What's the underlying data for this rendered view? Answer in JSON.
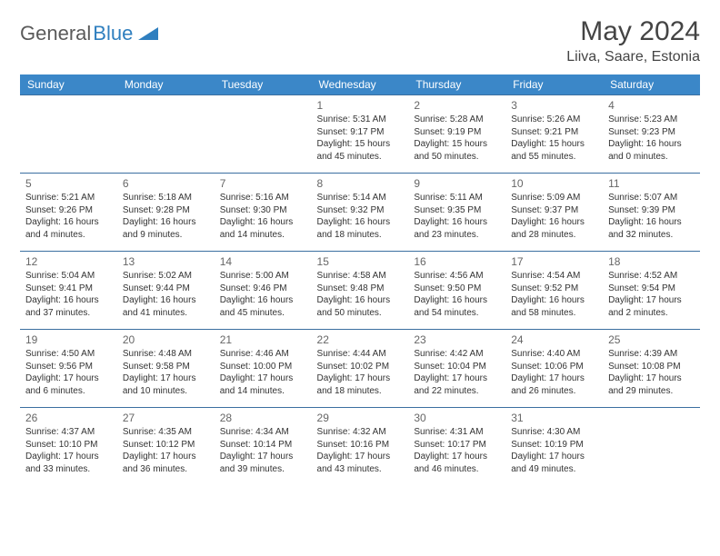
{
  "logo": {
    "text_a": "General",
    "text_b": "Blue"
  },
  "title": "May 2024",
  "location": "Liiva, Saare, Estonia",
  "colors": {
    "header_bg": "#3b87c8",
    "header_text": "#ffffff",
    "row_border": "#3b6fa0",
    "logo_gray": "#5a5a5a",
    "logo_blue": "#2f7fbf",
    "title_color": "#444444"
  },
  "day_headers": [
    "Sunday",
    "Monday",
    "Tuesday",
    "Wednesday",
    "Thursday",
    "Friday",
    "Saturday"
  ],
  "weeks": [
    [
      null,
      null,
      null,
      {
        "n": "1",
        "sunrise": "5:31 AM",
        "sunset": "9:17 PM",
        "daylight": "15 hours and 45 minutes."
      },
      {
        "n": "2",
        "sunrise": "5:28 AM",
        "sunset": "9:19 PM",
        "daylight": "15 hours and 50 minutes."
      },
      {
        "n": "3",
        "sunrise": "5:26 AM",
        "sunset": "9:21 PM",
        "daylight": "15 hours and 55 minutes."
      },
      {
        "n": "4",
        "sunrise": "5:23 AM",
        "sunset": "9:23 PM",
        "daylight": "16 hours and 0 minutes."
      }
    ],
    [
      {
        "n": "5",
        "sunrise": "5:21 AM",
        "sunset": "9:26 PM",
        "daylight": "16 hours and 4 minutes."
      },
      {
        "n": "6",
        "sunrise": "5:18 AM",
        "sunset": "9:28 PM",
        "daylight": "16 hours and 9 minutes."
      },
      {
        "n": "7",
        "sunrise": "5:16 AM",
        "sunset": "9:30 PM",
        "daylight": "16 hours and 14 minutes."
      },
      {
        "n": "8",
        "sunrise": "5:14 AM",
        "sunset": "9:32 PM",
        "daylight": "16 hours and 18 minutes."
      },
      {
        "n": "9",
        "sunrise": "5:11 AM",
        "sunset": "9:35 PM",
        "daylight": "16 hours and 23 minutes."
      },
      {
        "n": "10",
        "sunrise": "5:09 AM",
        "sunset": "9:37 PM",
        "daylight": "16 hours and 28 minutes."
      },
      {
        "n": "11",
        "sunrise": "5:07 AM",
        "sunset": "9:39 PM",
        "daylight": "16 hours and 32 minutes."
      }
    ],
    [
      {
        "n": "12",
        "sunrise": "5:04 AM",
        "sunset": "9:41 PM",
        "daylight": "16 hours and 37 minutes."
      },
      {
        "n": "13",
        "sunrise": "5:02 AM",
        "sunset": "9:44 PM",
        "daylight": "16 hours and 41 minutes."
      },
      {
        "n": "14",
        "sunrise": "5:00 AM",
        "sunset": "9:46 PM",
        "daylight": "16 hours and 45 minutes."
      },
      {
        "n": "15",
        "sunrise": "4:58 AM",
        "sunset": "9:48 PM",
        "daylight": "16 hours and 50 minutes."
      },
      {
        "n": "16",
        "sunrise": "4:56 AM",
        "sunset": "9:50 PM",
        "daylight": "16 hours and 54 minutes."
      },
      {
        "n": "17",
        "sunrise": "4:54 AM",
        "sunset": "9:52 PM",
        "daylight": "16 hours and 58 minutes."
      },
      {
        "n": "18",
        "sunrise": "4:52 AM",
        "sunset": "9:54 PM",
        "daylight": "17 hours and 2 minutes."
      }
    ],
    [
      {
        "n": "19",
        "sunrise": "4:50 AM",
        "sunset": "9:56 PM",
        "daylight": "17 hours and 6 minutes."
      },
      {
        "n": "20",
        "sunrise": "4:48 AM",
        "sunset": "9:58 PM",
        "daylight": "17 hours and 10 minutes."
      },
      {
        "n": "21",
        "sunrise": "4:46 AM",
        "sunset": "10:00 PM",
        "daylight": "17 hours and 14 minutes."
      },
      {
        "n": "22",
        "sunrise": "4:44 AM",
        "sunset": "10:02 PM",
        "daylight": "17 hours and 18 minutes."
      },
      {
        "n": "23",
        "sunrise": "4:42 AM",
        "sunset": "10:04 PM",
        "daylight": "17 hours and 22 minutes."
      },
      {
        "n": "24",
        "sunrise": "4:40 AM",
        "sunset": "10:06 PM",
        "daylight": "17 hours and 26 minutes."
      },
      {
        "n": "25",
        "sunrise": "4:39 AM",
        "sunset": "10:08 PM",
        "daylight": "17 hours and 29 minutes."
      }
    ],
    [
      {
        "n": "26",
        "sunrise": "4:37 AM",
        "sunset": "10:10 PM",
        "daylight": "17 hours and 33 minutes."
      },
      {
        "n": "27",
        "sunrise": "4:35 AM",
        "sunset": "10:12 PM",
        "daylight": "17 hours and 36 minutes."
      },
      {
        "n": "28",
        "sunrise": "4:34 AM",
        "sunset": "10:14 PM",
        "daylight": "17 hours and 39 minutes."
      },
      {
        "n": "29",
        "sunrise": "4:32 AM",
        "sunset": "10:16 PM",
        "daylight": "17 hours and 43 minutes."
      },
      {
        "n": "30",
        "sunrise": "4:31 AM",
        "sunset": "10:17 PM",
        "daylight": "17 hours and 46 minutes."
      },
      {
        "n": "31",
        "sunrise": "4:30 AM",
        "sunset": "10:19 PM",
        "daylight": "17 hours and 49 minutes."
      },
      null
    ]
  ],
  "labels": {
    "sunrise": "Sunrise:",
    "sunset": "Sunset:",
    "daylight": "Daylight:"
  }
}
